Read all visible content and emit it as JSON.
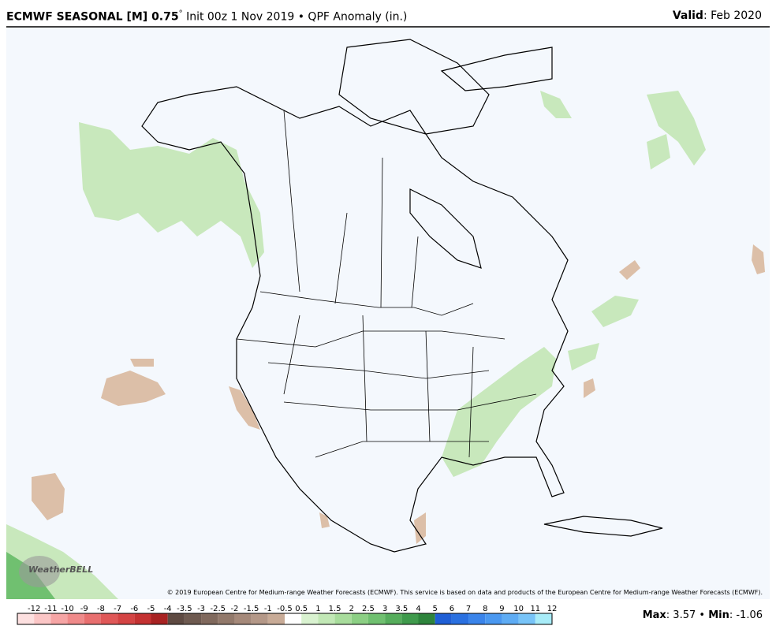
{
  "header": {
    "title_bold": "ECMWF SEASONAL [M] 0.75",
    "degree": "°",
    "title_rest": "Init 00z 1 Nov 2019 • QPF Anomaly (in.)",
    "valid_label": "Valid",
    "valid_value": ": Feb 2020"
  },
  "map": {
    "copyright": "© 2019 European Centre for Medium-range Weather Forecasts (ECMWF). This service is based on data and products of the European Centre for Medium-range Weather Forecasts (ECMWF).",
    "logo": "WeatherBELL"
  },
  "colorbar": {
    "labels": [
      "-12",
      "-11",
      "-10",
      "-9",
      "-8",
      "-7",
      "-6",
      "-5",
      "-4",
      "-3.5",
      "-3",
      "-2.5",
      "-2",
      "-1.5",
      "-1",
      "-0.5",
      "0.5",
      "1",
      "1.5",
      "2",
      "2.5",
      "3",
      "3.5",
      "4",
      "5",
      "6",
      "7",
      "8",
      "9",
      "10",
      "11",
      "12"
    ],
    "colors": [
      "#fde0e0",
      "#fbc6c6",
      "#f6a5a5",
      "#ef8a8a",
      "#e86f6f",
      "#e05858",
      "#d44444",
      "#c43232",
      "#a82222",
      "#5e4a42",
      "#6e5a50",
      "#80695d",
      "#92796b",
      "#a5897a",
      "#b49888",
      "#c8ab97",
      "#ffffff",
      "#d9f2d0",
      "#c2e8b6",
      "#a8dc9c",
      "#8ccf84",
      "#70c070",
      "#56ad5c",
      "#3f9a4c",
      "#2e843c",
      "#1f5fd6",
      "#2a70e0",
      "#3a84ea",
      "#4a98f0",
      "#5eacf4",
      "#78c4f8",
      "#a8ecf8"
    ]
  },
  "stats": {
    "max_label": "Max",
    "max_value": ": 3.57 • ",
    "min_label": "Min",
    "min_value": ": -1.06"
  }
}
